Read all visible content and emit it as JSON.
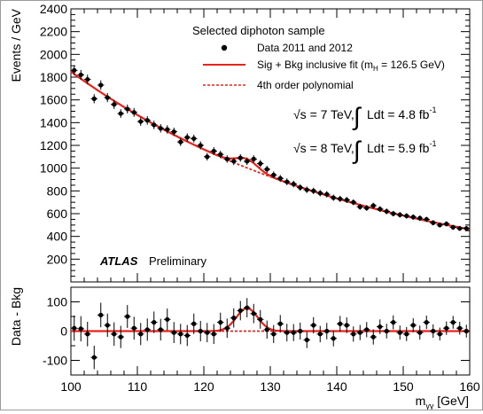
{
  "chart_data": [
    {
      "type": "scatter",
      "role": "main",
      "ylabel": "Events / GeV",
      "xlim": [
        100,
        160
      ],
      "ylim": [
        0,
        2400
      ],
      "y_ticks": [
        200,
        400,
        600,
        800,
        1000,
        1200,
        1400,
        1600,
        1800,
        2000,
        2200,
        2400
      ],
      "grid": false,
      "legend": {
        "position": "top-right",
        "title": "Selected diphoton sample",
        "entries": {
          "data": "Data 2011 and 2012",
          "fit": "Sig + Bkg inclusive fit (m",
          "fit_sub": "H",
          "fit_tail": " = 126.5 GeV)",
          "poly": "4th order polynomial"
        }
      },
      "annotations": {
        "lumi7_sqrt": "√s = 7 TeV,",
        "lumi7_int": "∫",
        "lumi7_ldt": "Ldt = 4.8 fb",
        "lumi7_exp": "-1",
        "lumi8_sqrt": "√s = 8 TeV,",
        "lumi8_int": "∫",
        "lumi8_ldt": "Ldt = 5.9 fb",
        "lumi8_exp": "-1",
        "atlas": "ATLAS",
        "preliminary": "Preliminary"
      },
      "series": [
        {
          "name": "Data 2011 and 2012",
          "kind": "points",
          "x": [
            100.5,
            101.5,
            102.5,
            103.5,
            104.5,
            105.5,
            106.5,
            107.5,
            108.5,
            109.5,
            110.5,
            111.5,
            112.5,
            113.5,
            114.5,
            115.5,
            116.5,
            117.5,
            118.5,
            119.5,
            120.5,
            121.5,
            122.5,
            123.5,
            124.5,
            125.5,
            126.5,
            127.5,
            128.5,
            129.5,
            130.5,
            131.5,
            132.5,
            133.5,
            134.5,
            135.5,
            136.5,
            137.5,
            138.5,
            139.5,
            140.5,
            141.5,
            142.5,
            143.5,
            144.5,
            145.5,
            146.5,
            147.5,
            148.5,
            149.5,
            150.5,
            151.5,
            152.5,
            153.5,
            154.5,
            155.5,
            156.5,
            157.5,
            158.5,
            159.5
          ],
          "y": [
            1860,
            1820,
            1780,
            1610,
            1730,
            1620,
            1560,
            1480,
            1520,
            1490,
            1410,
            1420,
            1380,
            1350,
            1340,
            1320,
            1230,
            1270,
            1260,
            1200,
            1100,
            1150,
            1120,
            1080,
            1060,
            1090,
            1060,
            1080,
            1040,
            990,
            940,
            910,
            880,
            860,
            830,
            810,
            800,
            780,
            770,
            740,
            730,
            720,
            700,
            660,
            650,
            670,
            640,
            620,
            600,
            590,
            580,
            570,
            560,
            550,
            520,
            500,
            510,
            480,
            470,
            470
          ],
          "error": [
            43,
            43,
            42,
            40,
            42,
            40,
            40,
            38,
            39,
            39,
            38,
            38,
            37,
            37,
            37,
            36,
            35,
            36,
            35,
            35,
            33,
            34,
            33,
            33,
            33,
            33,
            33,
            33,
            32,
            31,
            31,
            30,
            30,
            29,
            29,
            28,
            28,
            28,
            28,
            27,
            27,
            27,
            26,
            26,
            26,
            26,
            25,
            25,
            24,
            24,
            24,
            24,
            24,
            23,
            23,
            22,
            23,
            22,
            22,
            22
          ]
        },
        {
          "name": "Sig + Bkg inclusive fit",
          "kind": "curve",
          "color": "#e8231c",
          "style": "solid",
          "model": {
            "bkg_a": 1849,
            "bkg_decay": 0.0231,
            "signal_mass": 126.5,
            "signal_width": 1.6,
            "signal_amp": 78
          }
        },
        {
          "name": "4th order polynomial",
          "kind": "curve",
          "color": "#e8231c",
          "style": "dashed",
          "model": {
            "bkg_a": 1849,
            "bkg_decay": 0.0231
          }
        }
      ]
    },
    {
      "type": "scatter",
      "role": "residual",
      "xlabel": "m",
      "xlabel_sub": "γγ",
      "xlabel_unit": " [GeV]",
      "ylabel": "Data - Bkg",
      "xlim": [
        100,
        160
      ],
      "ylim": [
        -150,
        150
      ],
      "x_ticks": [
        100,
        110,
        120,
        130,
        140,
        150,
        160
      ],
      "y_ticks": [
        -100,
        0,
        100
      ],
      "series": [
        {
          "name": "Data - Bkg",
          "kind": "points",
          "x": [
            100.5,
            101.5,
            102.5,
            103.5,
            104.5,
            105.5,
            106.5,
            107.5,
            108.5,
            109.5,
            110.5,
            111.5,
            112.5,
            113.5,
            114.5,
            115.5,
            116.5,
            117.5,
            118.5,
            119.5,
            120.5,
            121.5,
            122.5,
            123.5,
            124.5,
            125.5,
            126.5,
            127.5,
            128.5,
            129.5,
            130.5,
            131.5,
            132.5,
            133.5,
            134.5,
            135.5,
            136.5,
            137.5,
            138.5,
            139.5,
            140.5,
            141.5,
            142.5,
            143.5,
            144.5,
            145.5,
            146.5,
            147.5,
            148.5,
            149.5,
            150.5,
            151.5,
            152.5,
            153.5,
            154.5,
            155.5,
            156.5,
            157.5,
            158.5,
            159.5
          ],
          "y": [
            10,
            8,
            -10,
            -90,
            55,
            20,
            -10,
            -20,
            50,
            10,
            -10,
            5,
            30,
            5,
            40,
            -5,
            -10,
            -15,
            25,
            0,
            -5,
            -10,
            30,
            10,
            45,
            70,
            80,
            60,
            40,
            5,
            -10,
            25,
            -5,
            -5,
            0,
            -30,
            20,
            -10,
            0,
            -25,
            25,
            20,
            -10,
            -5,
            5,
            -20,
            15,
            0,
            30,
            -5,
            -10,
            20,
            -5,
            30,
            0,
            -10,
            10,
            30,
            10,
            0
          ],
          "error": [
            43,
            43,
            42,
            40,
            42,
            40,
            40,
            38,
            39,
            39,
            38,
            38,
            37,
            37,
            37,
            36,
            35,
            36,
            35,
            35,
            33,
            34,
            33,
            33,
            33,
            33,
            33,
            33,
            32,
            31,
            31,
            30,
            30,
            29,
            29,
            28,
            28,
            28,
            28,
            27,
            27,
            27,
            26,
            26,
            26,
            26,
            25,
            25,
            24,
            24,
            24,
            24,
            24,
            23,
            23,
            22,
            23,
            22,
            22,
            22
          ]
        },
        {
          "name": "Signal fit",
          "kind": "curve",
          "color": "#e8231c",
          "style": "solid",
          "model": {
            "signal_mass": 126.5,
            "signal_width": 1.6,
            "signal_amp": 78
          }
        },
        {
          "name": "Zero line",
          "kind": "curve",
          "color": "#e8231c",
          "style": "dashed",
          "model": {
            "constant": 0
          }
        }
      ]
    }
  ]
}
